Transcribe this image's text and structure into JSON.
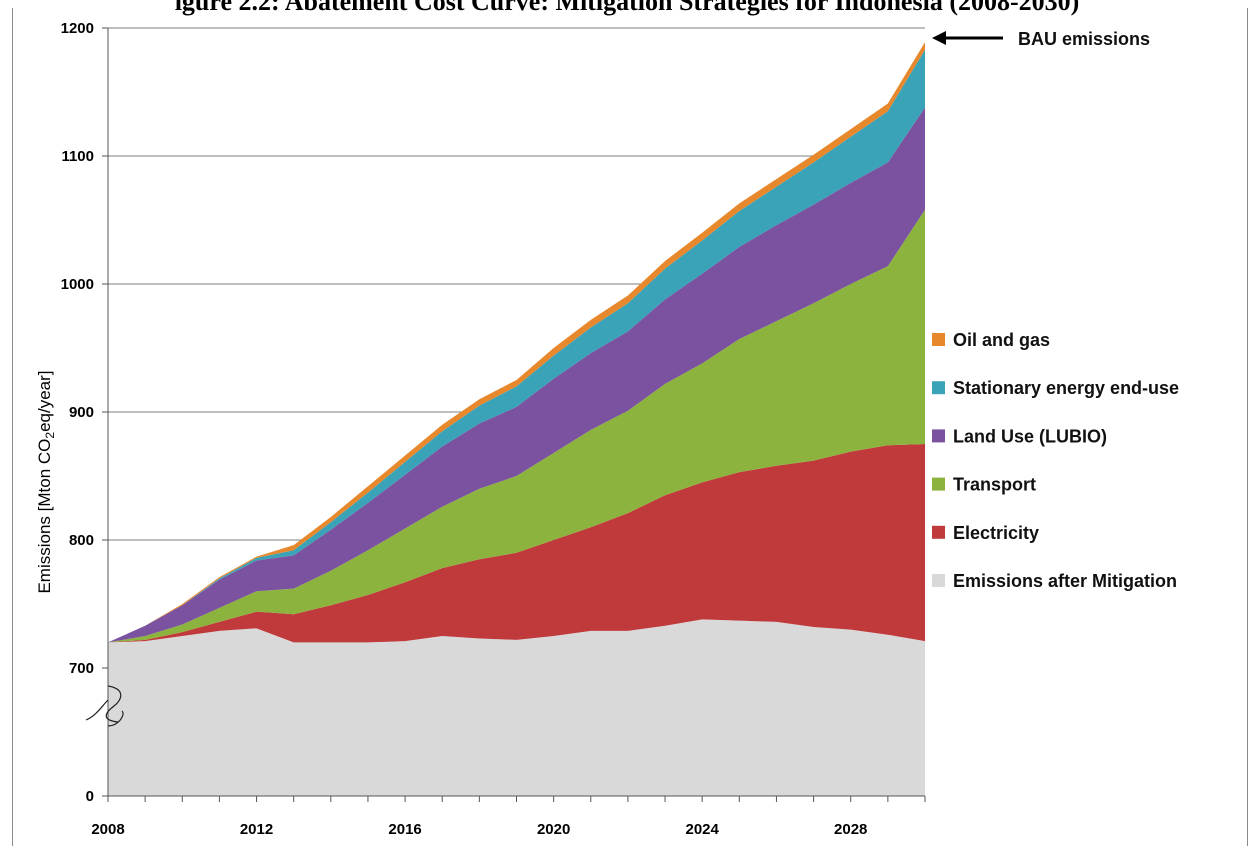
{
  "title": "igure 2.2: Abatement Cost Curve: Mitigation Strategies for Indonesia (2008-2030)",
  "chart_data": {
    "type": "area",
    "title": "igure 2.2: Abatement Cost Curve: Mitigation Strategies for Indonesia (2008-2030)",
    "xlabel": "",
    "ylabel": "Emissions [Mton CO2eq/year]",
    "ylabel_parts": {
      "pre": "Emissions [Mton CO",
      "sub": "2",
      "post": "eq/year]"
    },
    "xlim": [
      2008,
      2030
    ],
    "ylim": [
      600,
      1200
    ],
    "y_axis_break": true,
    "x_ticks": [
      "2008",
      "2012",
      "2016",
      "2020",
      "2024",
      "2028"
    ],
    "x_tick_values": [
      2008,
      2012,
      2016,
      2020,
      2024,
      2028
    ],
    "y_ticks": [
      "0",
      "700",
      "800",
      "900",
      "1000",
      "1100",
      "1200"
    ],
    "y_tick_values": [
      600,
      700,
      800,
      900,
      1000,
      1100,
      1200
    ],
    "grid": true,
    "legend_position": "right",
    "x": [
      2008,
      2009,
      2010,
      2011,
      2012,
      2013,
      2014,
      2015,
      2016,
      2017,
      2018,
      2019,
      2020,
      2021,
      2022,
      2023,
      2024,
      2025,
      2026,
      2027,
      2028,
      2029,
      2030
    ],
    "stacked": true,
    "series": [
      {
        "name": "Emissions after Mitigation",
        "color": "#d9d9d9",
        "values": [
          720,
          721,
          725,
          729,
          731,
          720,
          720,
          720,
          721,
          725,
          723,
          722,
          725,
          729,
          729,
          733,
          738,
          737,
          736,
          732,
          730,
          726,
          721
        ]
      },
      {
        "name": "Electricity",
        "color": "#c0393b",
        "values": [
          0,
          1,
          3,
          7,
          13,
          22,
          29,
          37,
          46,
          53,
          62,
          68,
          75,
          81,
          92,
          102,
          107,
          116,
          122,
          130,
          139,
          148,
          154
        ]
      },
      {
        "name": "Transport",
        "color": "#8db33f",
        "values": [
          0,
          3,
          6,
          11,
          16,
          20,
          27,
          35,
          42,
          48,
          55,
          60,
          68,
          76,
          80,
          87,
          93,
          104,
          113,
          123,
          131,
          140,
          183
        ]
      },
      {
        "name": "Land Use (LUBIO)",
        "color": "#7a52a0",
        "values": [
          0,
          8,
          15,
          22,
          24,
          26,
          32,
          37,
          42,
          47,
          51,
          54,
          58,
          60,
          62,
          66,
          70,
          72,
          75,
          77,
          79,
          81,
          80
        ]
      },
      {
        "name": "Stationary energy end-use",
        "color": "#3aa3b8",
        "values": [
          0,
          0,
          0,
          1,
          2,
          4,
          6,
          8,
          10,
          12,
          14,
          16,
          18,
          20,
          22,
          24,
          26,
          28,
          30,
          33,
          36,
          40,
          45
        ]
      },
      {
        "name": "Oil and gas",
        "color": "#e8882d",
        "values": [
          0,
          0,
          1,
          1,
          1,
          4,
          4,
          5,
          5,
          5,
          5,
          5,
          6,
          6,
          6,
          6,
          6,
          6,
          6,
          6,
          6,
          6,
          6
        ]
      }
    ],
    "annotations": [
      {
        "text": "BAU emissions",
        "target_x": 2030,
        "target_y": 1189
      }
    ]
  },
  "legend": [
    {
      "label": "Oil and gas",
      "color": "#e8882d"
    },
    {
      "label": "Stationary energy end-use",
      "color": "#3aa3b8"
    },
    {
      "label": "Land Use (LUBIO)",
      "color": "#7a52a0"
    },
    {
      "label": "Transport",
      "color": "#8db33f"
    },
    {
      "label": "Electricity",
      "color": "#c0393b"
    },
    {
      "label": "Emissions after Mitigation",
      "color": "#d9d9d9"
    }
  ],
  "bau_label": "BAU emissions",
  "colors": {
    "gridline": "#7f7f7f",
    "axis": "#555555",
    "text": "#000000"
  }
}
